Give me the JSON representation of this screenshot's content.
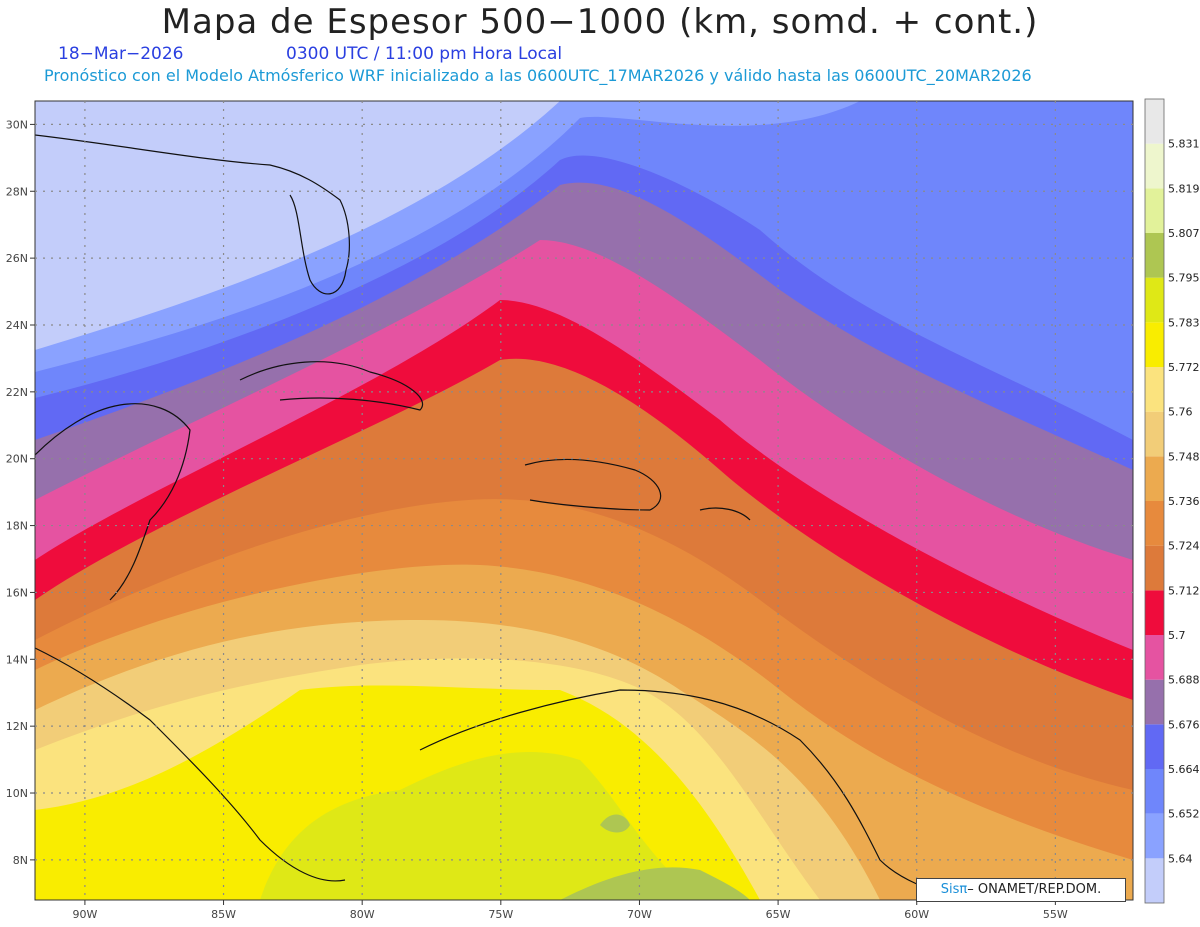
{
  "header": {
    "title": "Mapa de Espesor 500−1000 (km, somd. + cont.)",
    "date": "18−Mar−2026",
    "time": "0300 UTC / 11:00 pm Hora Local",
    "forecast": "Pronóstico con el Modelo Atmósferico WRF inicializado a las 0600UTC_17MAR2026 y válido hasta las  0600UTC_20MAR2026"
  },
  "map": {
    "lat_labels": [
      "30N",
      "28N",
      "26N",
      "24N",
      "22N",
      "20N",
      "18N",
      "16N",
      "14N",
      "12N",
      "10N",
      "8N"
    ],
    "lon_labels": [
      "90W",
      "85W",
      "80W",
      "75W",
      "70W",
      "65W",
      "60W",
      "55W"
    ],
    "lat_range": [
      6.8,
      30.7
    ],
    "lon_range": [
      -91.8,
      -52.2
    ]
  },
  "colorbar": {
    "labels": [
      "5.64",
      "5.652",
      "5.664",
      "5.676",
      "5.688",
      "5.7",
      "5.712",
      "5.724",
      "5.736",
      "5.748",
      "5.76",
      "5.772",
      "5.783",
      "5.795",
      "5.807",
      "5.819",
      "5.831"
    ],
    "colors": [
      "#c3cdfa",
      "#8aa2ff",
      "#6f86fb",
      "#6169f4",
      "#9670ac",
      "#e553a1",
      "#ef0c3c",
      "#dd7a3a",
      "#e78a3d",
      "#ecaa4f",
      "#f2cd78",
      "#fbe37e",
      "#f9ed00",
      "#dfe816",
      "#aec652",
      "#e2f29a",
      "#eef6cd",
      "#e8e8e8"
    ]
  },
  "credit": {
    "brand": "Sisπ",
    "agency": "– ONAMET/REP.DOM."
  }
}
